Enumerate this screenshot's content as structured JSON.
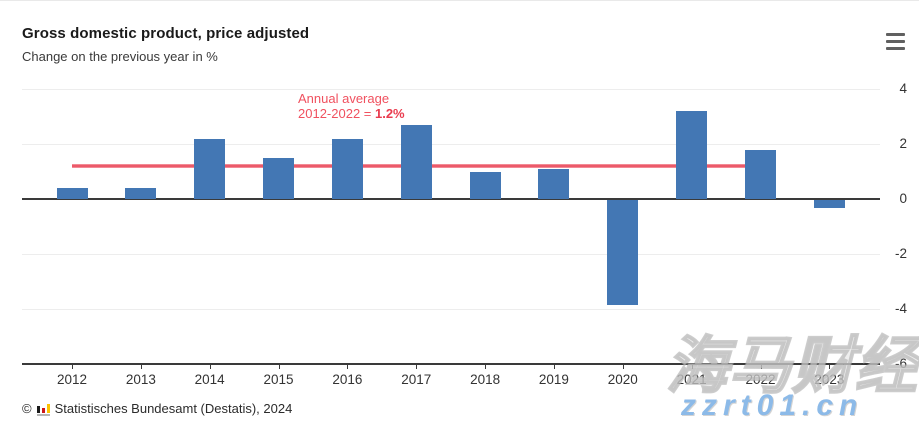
{
  "header": {
    "title": "Gross domestic product, price adjusted",
    "subtitle": "Change on the previous year in %",
    "menu_icon": "hamburger-menu-icon"
  },
  "chart_data": {
    "type": "bar",
    "title": "Gross domestic product, price adjusted",
    "subtitle": "Change on the previous year in %",
    "categories": [
      "2012",
      "2013",
      "2014",
      "2015",
      "2016",
      "2017",
      "2018",
      "2019",
      "2020",
      "2021",
      "2022",
      "2023"
    ],
    "values": [
      0.4,
      0.4,
      2.2,
      1.5,
      2.2,
      2.7,
      1.0,
      1.1,
      -3.8,
      3.2,
      1.8,
      -0.3
    ],
    "unit": "%",
    "ylim": [
      -6,
      4
    ],
    "yticks": [
      4,
      2,
      0,
      -2,
      -4,
      -6
    ],
    "grid": "horizontal",
    "legend": "none",
    "bar_color": "#4377b4",
    "average_line": {
      "value": 1.2,
      "from": "2012",
      "to": "2022",
      "color": "#ec5a6a",
      "label_line1": "Annual average",
      "label_line2_prefix": "2012-2022 = ",
      "label_line2_value": "1.2%"
    }
  },
  "footer": {
    "copyright": "©",
    "source": "Statistisches Bundesamt (Destatis), 2024",
    "logo_icon": "destatis-mini-bar-chart-icon"
  },
  "watermark": {
    "text_cn": "海马财经",
    "text_url": "zzrt01.cn"
  },
  "colors": {
    "bar": "#4377b4",
    "average_line": "#ec5a6a",
    "annotation_text": "#f0515f",
    "annotation_value": "#e93b4e",
    "zero_line": "#3a3a3a",
    "gridline": "#ededed"
  }
}
